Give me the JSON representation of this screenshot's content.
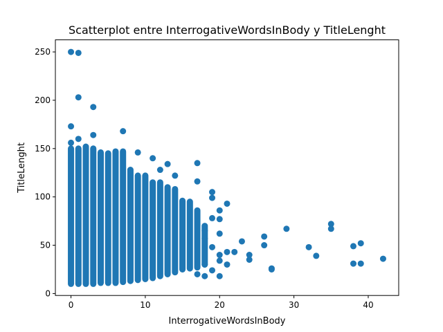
{
  "chart_data": {
    "type": "scatter",
    "title": "Scatterplot entre InterrogativeWordsInBody y TitleLenght",
    "xlabel": "InterrogativeWordsInBody",
    "ylabel": "TitleLenght",
    "xlim": [
      -2.1,
      44.1
    ],
    "ylim": [
      -2,
      262.5
    ],
    "xticks": [
      0,
      10,
      20,
      30,
      40
    ],
    "yticks": [
      0,
      50,
      100,
      150,
      200,
      250
    ],
    "grid": false,
    "marker_color": "#1f77b4",
    "columns": [
      {
        "x": 0,
        "ymin": 10,
        "ymax": 150
      },
      {
        "x": 1,
        "ymin": 10,
        "ymax": 150
      },
      {
        "x": 2,
        "ymin": 10,
        "ymax": 152
      },
      {
        "x": 3,
        "ymin": 10,
        "ymax": 150
      },
      {
        "x": 4,
        "ymin": 11,
        "ymax": 146
      },
      {
        "x": 5,
        "ymin": 11,
        "ymax": 145
      },
      {
        "x": 6,
        "ymin": 11,
        "ymax": 147
      },
      {
        "x": 7,
        "ymin": 12,
        "ymax": 147
      },
      {
        "x": 8,
        "ymin": 13,
        "ymax": 128
      },
      {
        "x": 9,
        "ymin": 14,
        "ymax": 122
      },
      {
        "x": 10,
        "ymin": 15,
        "ymax": 122
      },
      {
        "x": 11,
        "ymin": 16,
        "ymax": 115
      },
      {
        "x": 12,
        "ymin": 18,
        "ymax": 115
      },
      {
        "x": 13,
        "ymin": 20,
        "ymax": 110
      },
      {
        "x": 14,
        "ymin": 22,
        "ymax": 108
      },
      {
        "x": 15,
        "ymin": 25,
        "ymax": 96
      },
      {
        "x": 16,
        "ymin": 26,
        "ymax": 95
      },
      {
        "x": 17,
        "ymin": 27,
        "ymax": 86
      },
      {
        "x": 18,
        "ymin": 30,
        "ymax": 70
      }
    ],
    "points": [
      {
        "x": 0,
        "y": 250
      },
      {
        "x": 1,
        "y": 249
      },
      {
        "x": 1,
        "y": 203
      },
      {
        "x": 3,
        "y": 193
      },
      {
        "x": 0,
        "y": 173
      },
      {
        "x": 3,
        "y": 164
      },
      {
        "x": 7,
        "y": 168
      },
      {
        "x": 1,
        "y": 160
      },
      {
        "x": 0,
        "y": 156
      },
      {
        "x": 9,
        "y": 146
      },
      {
        "x": 11,
        "y": 140
      },
      {
        "x": 13,
        "y": 134
      },
      {
        "x": 12,
        "y": 128
      },
      {
        "x": 14,
        "y": 122
      },
      {
        "x": 17,
        "y": 135
      },
      {
        "x": 17,
        "y": 116
      },
      {
        "x": 19,
        "y": 105
      },
      {
        "x": 19,
        "y": 99
      },
      {
        "x": 21,
        "y": 93
      },
      {
        "x": 20,
        "y": 86
      },
      {
        "x": 20,
        "y": 77
      },
      {
        "x": 19,
        "y": 78
      },
      {
        "x": 18,
        "y": 65
      },
      {
        "x": 18,
        "y": 57
      },
      {
        "x": 20,
        "y": 62
      },
      {
        "x": 19,
        "y": 48
      },
      {
        "x": 20,
        "y": 40
      },
      {
        "x": 20,
        "y": 34
      },
      {
        "x": 19,
        "y": 24
      },
      {
        "x": 20,
        "y": 18
      },
      {
        "x": 18,
        "y": 18
      },
      {
        "x": 17,
        "y": 20
      },
      {
        "x": 18,
        "y": 30
      },
      {
        "x": 21,
        "y": 43
      },
      {
        "x": 21,
        "y": 30
      },
      {
        "x": 22,
        "y": 43
      },
      {
        "x": 23,
        "y": 54
      },
      {
        "x": 24,
        "y": 40
      },
      {
        "x": 24,
        "y": 35
      },
      {
        "x": 26,
        "y": 59
      },
      {
        "x": 26,
        "y": 50
      },
      {
        "x": 27,
        "y": 26
      },
      {
        "x": 27,
        "y": 25
      },
      {
        "x": 29,
        "y": 67
      },
      {
        "x": 32,
        "y": 48
      },
      {
        "x": 33,
        "y": 39
      },
      {
        "x": 35,
        "y": 72
      },
      {
        "x": 35,
        "y": 67
      },
      {
        "x": 38,
        "y": 49
      },
      {
        "x": 38,
        "y": 31
      },
      {
        "x": 39,
        "y": 52
      },
      {
        "x": 39,
        "y": 31
      },
      {
        "x": 42,
        "y": 36
      }
    ]
  }
}
